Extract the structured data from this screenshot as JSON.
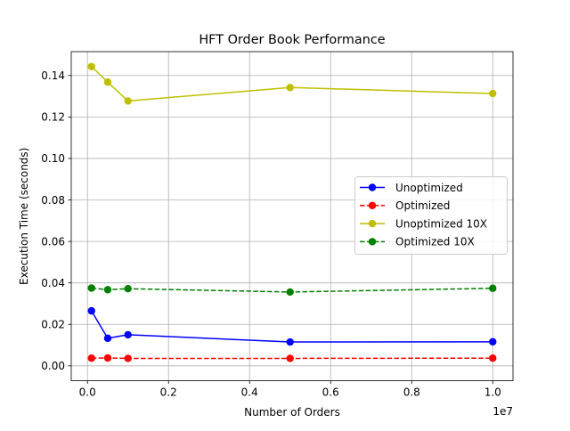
{
  "chart_data": {
    "type": "line",
    "title": "HFT Order Book Performance",
    "xlabel": "Number of Orders",
    "ylabel": "Execution Time (seconds)",
    "x_offset_label": "1e7",
    "xlim": [
      -400000,
      10500000
    ],
    "ylim": [
      -0.0072,
      0.1515
    ],
    "x_scale": 10000000,
    "x_ticks": [
      0,
      2000000,
      4000000,
      6000000,
      8000000,
      10000000
    ],
    "x_tick_labels": [
      "0.0",
      "0.2",
      "0.4",
      "0.6",
      "0.8",
      "1.0"
    ],
    "y_ticks": [
      0.0,
      0.02,
      0.04,
      0.06,
      0.08,
      0.1,
      0.12,
      0.14
    ],
    "y_tick_labels": [
      "0.00",
      "0.02",
      "0.04",
      "0.06",
      "0.08",
      "0.10",
      "0.12",
      "0.14"
    ],
    "grid": true,
    "legend_position": "center-right",
    "x": [
      100000,
      500000,
      1000000,
      5000000,
      10000000
    ],
    "series": [
      {
        "name": "Unoptimized",
        "values": [
          0.0265,
          0.0133,
          0.015,
          0.0115,
          0.0116
        ],
        "color": "#0000ff",
        "dash": "solid",
        "marker": "circle"
      },
      {
        "name": "Optimized",
        "values": [
          0.0037,
          0.0038,
          0.0036,
          0.0036,
          0.0037
        ],
        "color": "#ff0000",
        "dash": "dashed",
        "marker": "circle"
      },
      {
        "name": "Unoptimized 10X",
        "values": [
          0.1443,
          0.1368,
          0.1277,
          0.1342,
          0.1313
        ],
        "color": "#bfbf00",
        "dash": "solid",
        "marker": "circle"
      },
      {
        "name": "Optimized 10X",
        "values": [
          0.0375,
          0.0367,
          0.0372,
          0.0356,
          0.0374
        ],
        "color": "#008000",
        "dash": "dashed",
        "marker": "circle"
      }
    ]
  }
}
